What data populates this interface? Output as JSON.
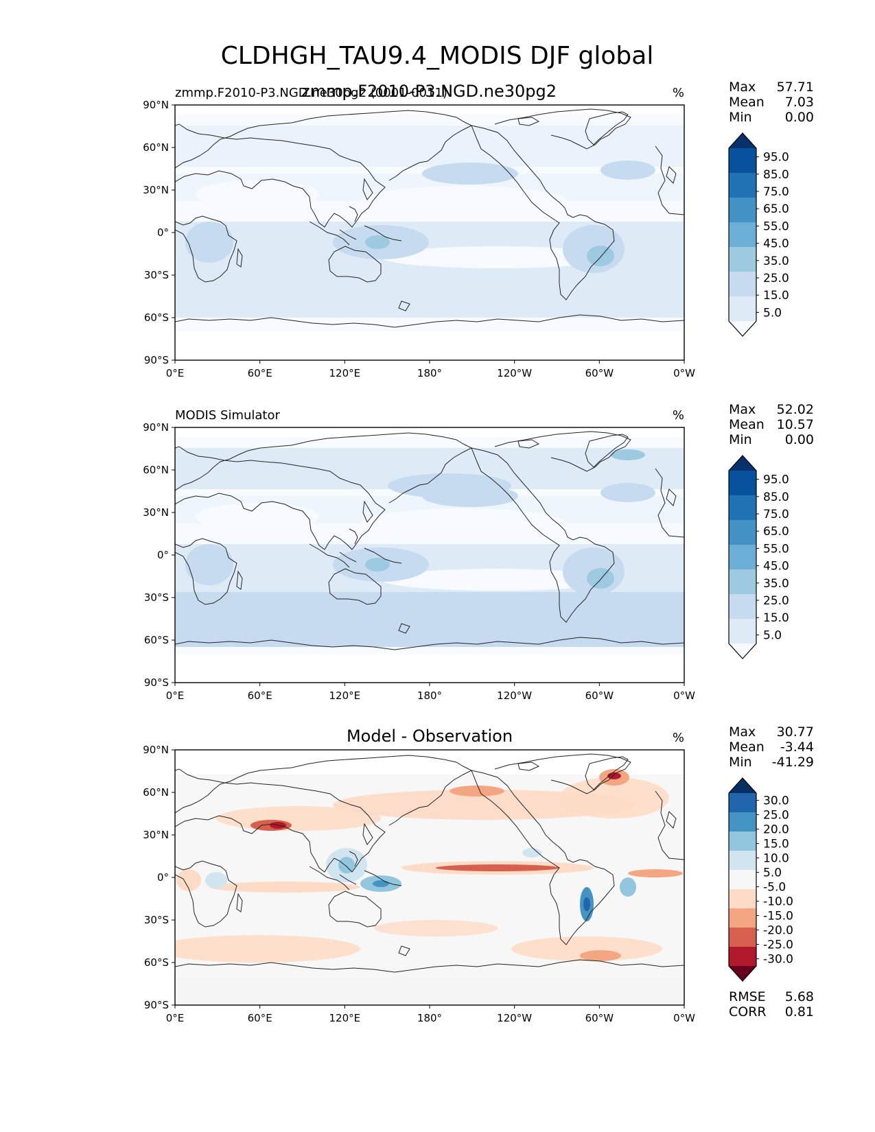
{
  "figure": {
    "title": "CLDHGH_TAU9.4_MODIS DJF global",
    "overlapping_title": "zmmp.F2010-P3.NGD.ne30pg2"
  },
  "colors": {
    "blues": [
      "#f7fbff",
      "#deebf7",
      "#c6dbef",
      "#9ecae1",
      "#6baed6",
      "#4292c6",
      "#2171b5",
      "#08519c",
      "#08306b"
    ],
    "rdbu": [
      "#67001f",
      "#b2182b",
      "#d6604d",
      "#f4a582",
      "#fddbc7",
      "#f7f7f7",
      "#d1e5f0",
      "#92c5de",
      "#4393c3",
      "#2166ac",
      "#053061"
    ]
  },
  "chart_data": [
    {
      "type": "heatmap",
      "title_left": "zmmp.F2010-P3.NGD.ne30pg2 (0001-0011)",
      "title_center": "",
      "units": "%",
      "x_ticks": [
        "0°E",
        "60°E",
        "120°E",
        "180°",
        "120°W",
        "60°W",
        "0°W"
      ],
      "y_ticks": [
        "90°N",
        "60°N",
        "30°N",
        "0°",
        "30°S",
        "60°S",
        "90°S"
      ],
      "xlim": [
        0,
        360
      ],
      "ylim": [
        -90,
        90
      ],
      "stats": [
        {
          "label": "Max",
          "value": "57.71"
        },
        {
          "label": "Mean",
          "value": "7.03"
        },
        {
          "label": "Min",
          "value": "0.00"
        }
      ],
      "colorbar": {
        "levels": [
          "95.0",
          "85.0",
          "75.0",
          "65.0",
          "55.0",
          "45.0",
          "35.0",
          "25.0",
          "15.0",
          "5.0"
        ],
        "extend": "both",
        "palette": "blues"
      }
    },
    {
      "type": "heatmap",
      "title_left": "MODIS Simulator",
      "title_center": "",
      "units": "%",
      "x_ticks": [
        "0°E",
        "60°E",
        "120°E",
        "180°",
        "120°W",
        "60°W",
        "0°W"
      ],
      "y_ticks": [
        "90°N",
        "60°N",
        "30°N",
        "0°",
        "30°S",
        "60°S",
        "90°S"
      ],
      "xlim": [
        0,
        360
      ],
      "ylim": [
        -90,
        90
      ],
      "stats": [
        {
          "label": "Max",
          "value": "52.02"
        },
        {
          "label": "Mean",
          "value": "10.57"
        },
        {
          "label": "Min",
          "value": "0.00"
        }
      ],
      "colorbar": {
        "levels": [
          "95.0",
          "85.0",
          "75.0",
          "65.0",
          "55.0",
          "45.0",
          "35.0",
          "25.0",
          "15.0",
          "5.0"
        ],
        "extend": "both",
        "palette": "blues"
      }
    },
    {
      "type": "heatmap",
      "title_left": "",
      "title_center": "Model - Observation",
      "units": "%",
      "x_ticks": [
        "0°E",
        "60°E",
        "120°E",
        "180°",
        "120°W",
        "60°W",
        "0°W"
      ],
      "y_ticks": [
        "90°N",
        "60°N",
        "30°N",
        "0°",
        "30°S",
        "60°S",
        "90°S"
      ],
      "xlim": [
        0,
        360
      ],
      "ylim": [
        -90,
        90
      ],
      "stats": [
        {
          "label": "Max",
          "value": "30.77"
        },
        {
          "label": "Mean",
          "value": "-3.44"
        },
        {
          "label": "Min",
          "value": "-41.29"
        }
      ],
      "colorbar": {
        "levels": [
          "30.0",
          "25.0",
          "20.0",
          "15.0",
          "10.0",
          "5.0",
          "-5.0",
          "-10.0",
          "-15.0",
          "-20.0",
          "-25.0",
          "-30.0"
        ],
        "extend": "both",
        "palette": "rdbu"
      },
      "bottom_stats": [
        {
          "label": "RMSE",
          "value": "5.68"
        },
        {
          "label": "CORR",
          "value": "0.81"
        }
      ]
    }
  ]
}
